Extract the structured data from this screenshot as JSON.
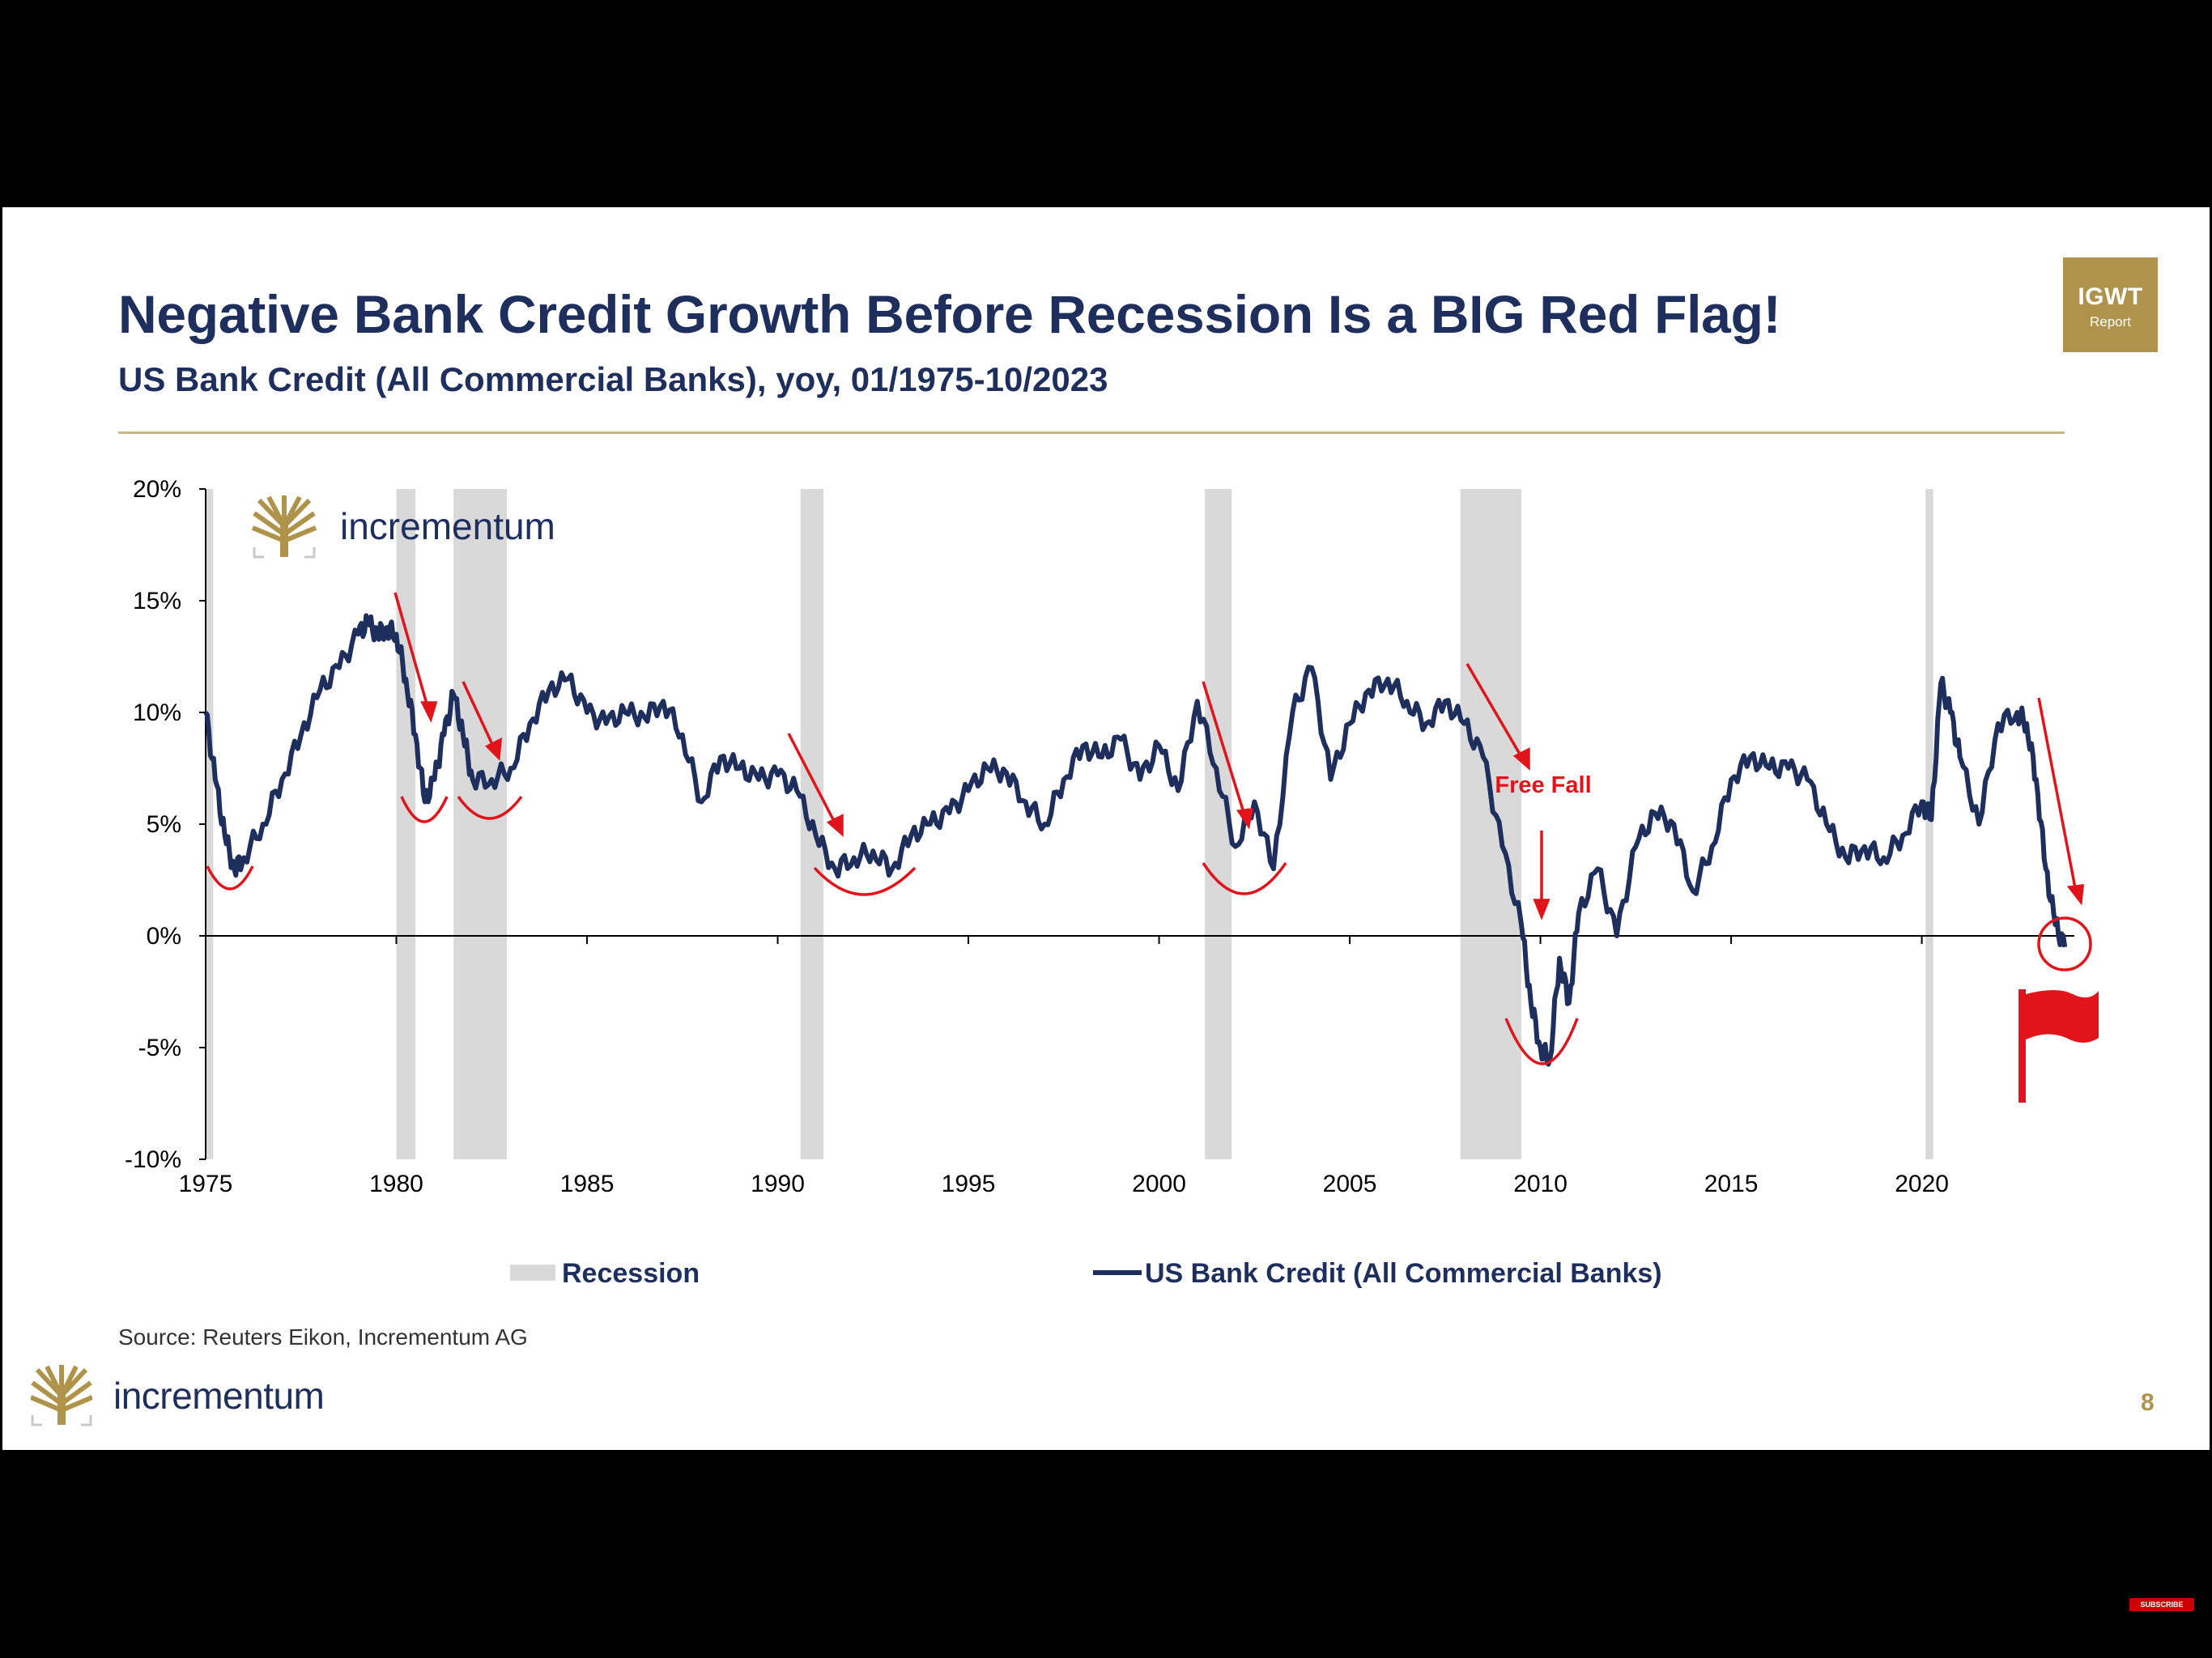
{
  "slide": {
    "title": "Negative Bank Credit Growth Before Recession Is a BIG Red Flag!",
    "subtitle": "US Bank Credit (All Commercial Banks), yoy, 01/1975-10/2023",
    "badge_main": "IGWT",
    "badge_sub": "Report",
    "source": "Source: Reuters Eikon, Incrementum AG",
    "brand": "incrementum",
    "page_number": "8",
    "subscribe_label": "SUBSCRIBE"
  },
  "colors": {
    "navy": "#1e2f5d",
    "gold": "#b0934b",
    "red": "#e0141a",
    "recession_gray": "#d9d9d9"
  },
  "chart_data": {
    "type": "line",
    "title": "US Bank Credit (All Commercial Banks), yoy, 01/1975-10/2023",
    "xlabel": "",
    "ylabel": "",
    "xlim": [
      1975,
      2024
    ],
    "ylim": [
      -10,
      20
    ],
    "x_ticks": [
      1975,
      1980,
      1985,
      1990,
      1995,
      2000,
      2005,
      2010,
      2015,
      2020
    ],
    "y_ticks": [
      -10,
      -5,
      0,
      5,
      10,
      15,
      20
    ],
    "y_tick_labels": [
      "-10%",
      "-5%",
      "0%",
      "5%",
      "10%",
      "15%",
      "20%"
    ],
    "grid": false,
    "legend": {
      "position": "bottom",
      "entries": [
        "Recession",
        "US Bank Credit (All Commercial Banks)"
      ]
    },
    "recessions": [
      [
        1975.0,
        1975.2
      ],
      [
        1980.0,
        1980.5
      ],
      [
        1981.5,
        1982.9
      ],
      [
        1990.6,
        1991.2
      ],
      [
        2001.2,
        2001.9
      ],
      [
        2007.9,
        2009.5
      ],
      [
        2020.1,
        2020.3
      ]
    ],
    "series": [
      {
        "name": "US Bank Credit (All Commercial Banks)",
        "x": [
          1975.0,
          1975.25,
          1975.5,
          1975.75,
          1976.0,
          1976.5,
          1977.0,
          1977.5,
          1978.0,
          1978.5,
          1979.0,
          1979.25,
          1979.5,
          1979.75,
          1980.0,
          1980.25,
          1980.5,
          1980.75,
          1981.0,
          1981.25,
          1981.5,
          1981.75,
          1982.0,
          1982.5,
          1983.0,
          1983.5,
          1984.0,
          1984.5,
          1985.0,
          1985.5,
          1986.0,
          1986.5,
          1987.0,
          1987.5,
          1988.0,
          1988.5,
          1989.0,
          1989.5,
          1990.0,
          1990.5,
          1991.0,
          1991.5,
          1992.0,
          1992.5,
          1993.0,
          1993.5,
          1994.0,
          1994.5,
          1995.0,
          1995.5,
          1996.0,
          1996.5,
          1997.0,
          1997.5,
          1998.0,
          1998.5,
          1999.0,
          1999.5,
          2000.0,
          2000.5,
          2001.0,
          2001.5,
          2002.0,
          2002.5,
          2003.0,
          2003.5,
          2004.0,
          2004.5,
          2005.0,
          2005.5,
          2006.0,
          2006.5,
          2007.0,
          2007.5,
          2008.0,
          2008.5,
          2009.0,
          2009.5,
          2009.75,
          2010.0,
          2010.25,
          2010.5,
          2010.75,
          2011.0,
          2011.5,
          2012.0,
          2012.5,
          2013.0,
          2013.5,
          2014.0,
          2014.5,
          2015.0,
          2015.5,
          2016.0,
          2016.5,
          2017.0,
          2017.5,
          2018.0,
          2018.5,
          2019.0,
          2019.5,
          2020.0,
          2020.25,
          2020.5,
          2020.75,
          2021.0,
          2021.5,
          2022.0,
          2022.5,
          2022.75,
          2023.0,
          2023.25,
          2023.5,
          2023.75
        ],
        "values": [
          10,
          7,
          4.5,
          3,
          3.5,
          5,
          7,
          9,
          11,
          12,
          13.5,
          14,
          13.5,
          13.8,
          13.5,
          11.5,
          9,
          6,
          7,
          9,
          10.8,
          9,
          7,
          7,
          7.5,
          9.5,
          11,
          11.5,
          10,
          9.5,
          10,
          9.8,
          10.5,
          9,
          6,
          8,
          7.5,
          7,
          7.2,
          6.5,
          4.5,
          3,
          3.5,
          3.8,
          3,
          4.5,
          5,
          5.5,
          6.5,
          7.5,
          7.3,
          6,
          5,
          7,
          8.5,
          8,
          8.8,
          7,
          8.5,
          6.5,
          10.5,
          7.5,
          4,
          6,
          3,
          10,
          12,
          7,
          9.5,
          11,
          11.5,
          10.5,
          9.5,
          10.5,
          9.5,
          8,
          4,
          0.5,
          -3,
          -5,
          -5.5,
          -1,
          -3,
          1,
          3,
          0,
          4,
          5.5,
          5,
          2,
          4,
          7,
          8,
          7.5,
          7.5,
          7,
          5,
          3.5,
          4,
          3.5,
          4.5,
          6,
          5.2,
          11.3,
          10,
          8,
          5,
          9.5,
          10,
          9.5,
          7,
          3,
          0.5,
          -0.5
        ]
      }
    ],
    "annotations": {
      "free_fall_text": "Free Fall"
    }
  }
}
